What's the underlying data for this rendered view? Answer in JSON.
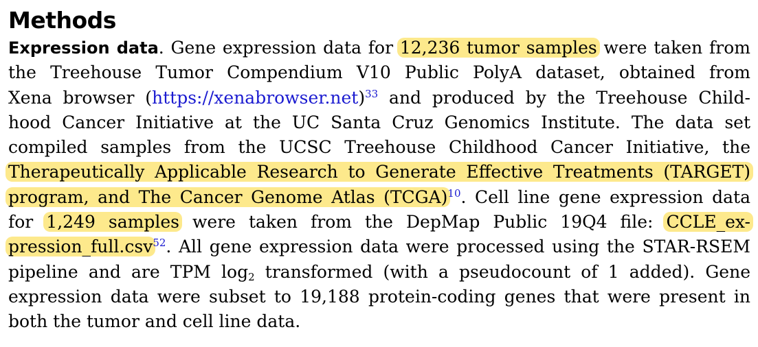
{
  "section_heading": "Methods",
  "subsection": {
    "title": "Expression data",
    "title_period": "."
  },
  "lines": {
    "l1_a": " Gene expression data for ",
    "l1_hl": "12,236 tumor samples",
    "l1_b": " were taken from",
    "l2": "the Treehouse Tumor Compendium V10 Public PolyA dataset, obtained from",
    "l3_a": "Xena browser (",
    "l3_link": "https://xenabrowser.net",
    "l3_b": ")",
    "l3_ref": "33",
    "l3_c": " and produced by the Treehouse Child-",
    "l4": "hood Cancer Initiative at the UC Santa Cruz Genomics Institute. The data set",
    "l5": "compiled samples from the UCSC Treehouse Childhood Cancer Initiative, the",
    "l6_hl": "Therapeutically Applicable Research to Generate Effective Treatments (TARGET)",
    "l7_hl": "program, and The Cancer Genome Atlas (TCGA)",
    "l7_ref": "10",
    "l7_b": ". Cell line gene expression data",
    "l8_a": "for ",
    "l8_hl1": "1,249 samples",
    "l8_b": " were taken from the DepMap Public 19Q4 file: ",
    "l8_hl2": "CCLE_ex-",
    "l9_hl": "pression_full.csv",
    "l9_ref": "52",
    "l9_b": ". All gene expression data were processed using the STAR-RSEM",
    "l10_a": "pipeline and are TPM log",
    "l10_sub": "2",
    "l10_b": " transformed (with a pseudocount of 1 added). Gene",
    "l11": "expression data were subset to 19,188 protein-coding genes that were present in",
    "l12": "both the tumor and cell line data."
  },
  "colors": {
    "highlight": "#fde98c",
    "link": "#1a1ad0",
    "text": "#000000"
  }
}
